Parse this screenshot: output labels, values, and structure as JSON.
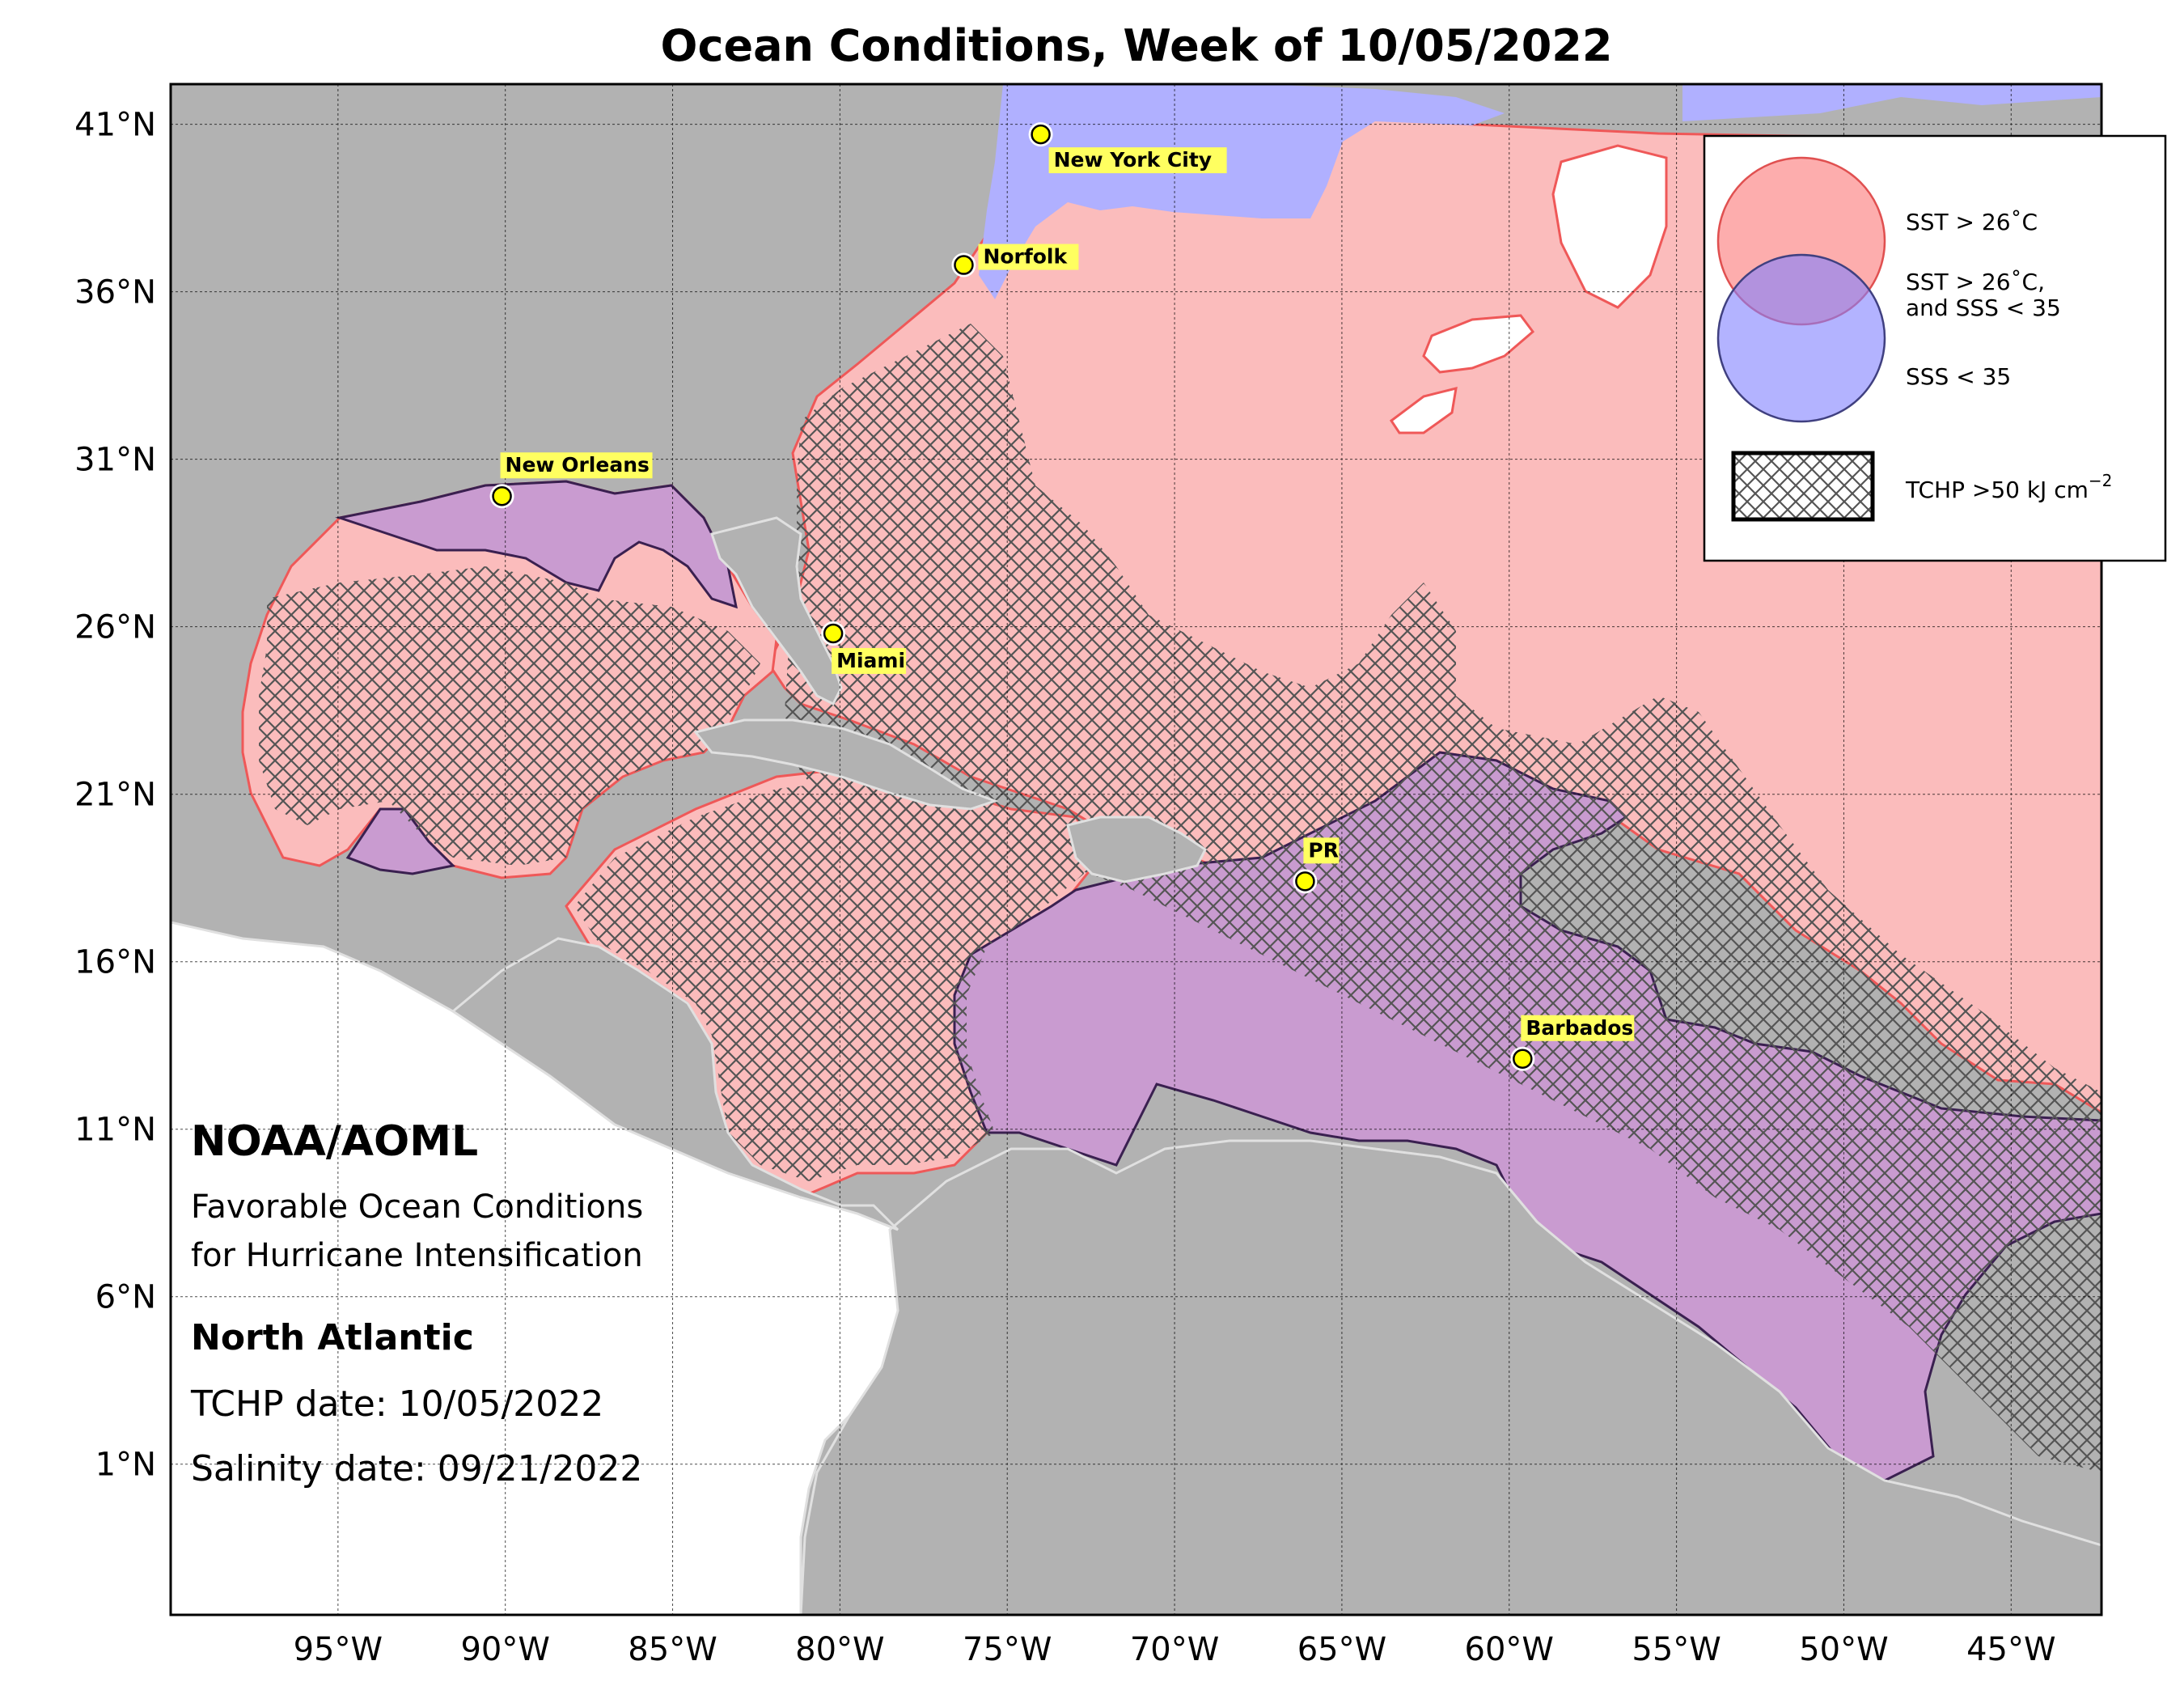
{
  "title": "Ocean Conditions, Week of 10/05/2022",
  "axes": {
    "lat_ticks": [
      {
        "value": 41,
        "label": "41°N"
      },
      {
        "value": 36,
        "label": "36°N"
      },
      {
        "value": 31,
        "label": "31°N"
      },
      {
        "value": 26,
        "label": "26°N"
      },
      {
        "value": 21,
        "label": "21°N"
      },
      {
        "value": 16,
        "label": "16°N"
      },
      {
        "value": 11,
        "label": "11°N"
      },
      {
        "value": 6,
        "label": "6°N"
      },
      {
        "value": 1,
        "label": "1°N"
      }
    ],
    "lon_ticks": [
      {
        "value": -95,
        "label": "95°W"
      },
      {
        "value": -90,
        "label": "90°W"
      },
      {
        "value": -85,
        "label": "85°W"
      },
      {
        "value": -80,
        "label": "80°W"
      },
      {
        "value": -75,
        "label": "75°W"
      },
      {
        "value": -70,
        "label": "70°W"
      },
      {
        "value": -65,
        "label": "65°W"
      },
      {
        "value": -60,
        "label": "60°W"
      },
      {
        "value": -55,
        "label": "55°W"
      },
      {
        "value": -50,
        "label": "50°W"
      },
      {
        "value": -45,
        "label": "45°W"
      }
    ],
    "lon_range": [
      -100,
      -42.3
    ],
    "lat_range": [
      -3.5,
      42.2
    ]
  },
  "cities": [
    {
      "name": "New York City",
      "lon": -74.0,
      "lat": 40.7
    },
    {
      "name": "Norfolk",
      "lon": -76.3,
      "lat": 36.8
    },
    {
      "name": "New Orleans",
      "lon": -90.1,
      "lat": 29.9
    },
    {
      "name": "Miami",
      "lon": -80.2,
      "lat": 25.8
    },
    {
      "name": "PR",
      "lon": -66.1,
      "lat": 18.4
    },
    {
      "name": "Barbados",
      "lon": -59.6,
      "lat": 13.1
    }
  ],
  "legend": {
    "sst": "SST > 26˚C",
    "overlap_line1": "SST > 26˚C,",
    "overlap_line2": "and SSS < 35",
    "sss": "SSS < 35",
    "tchp": "TCHP >50 kJ cm",
    "tchp_exp": "−2"
  },
  "info": {
    "org": "NOAA/AOML",
    "desc_line1": "Favorable Ocean Conditions",
    "desc_line2": "for Hurricane Intensification",
    "region": "North Atlantic",
    "tchp_date": "TCHP date: 10/05/2022",
    "salinity_date": "Salinity date: 09/21/2022"
  },
  "colors": {
    "land": "#b2b2b2",
    "sst": "#fbbcbc",
    "overlap": "#c99bd0",
    "sss": "#b0b0ff",
    "hatch": "#555555",
    "city_marker": "#ffff00"
  }
}
